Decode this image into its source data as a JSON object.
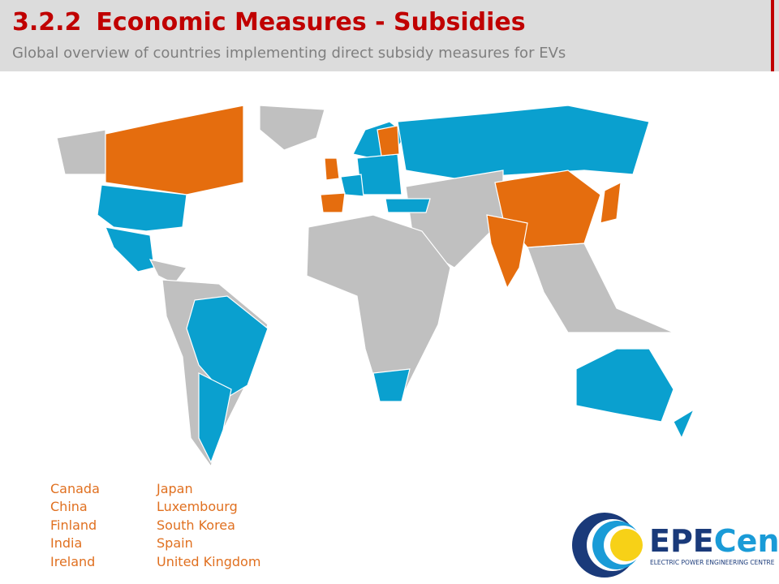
{
  "header": {
    "number": "3.2.2",
    "title": "Economic Measures - Subsidies",
    "subtitle": "Global overview of countries implementing direct subsidy measures for EVs"
  },
  "countries": {
    "column_1": [
      "Canada",
      "China",
      "Finland",
      "India",
      "Ireland"
    ],
    "column_2": [
      "Japan",
      "Luxembourg",
      "South Korea",
      "Spain",
      "United Kingdom"
    ]
  },
  "logo": {
    "name_part_1": "EPE",
    "name_part_2": "Centre",
    "tagline": "ELECTRIC POWER ENGINEERING CENTRE"
  }
}
